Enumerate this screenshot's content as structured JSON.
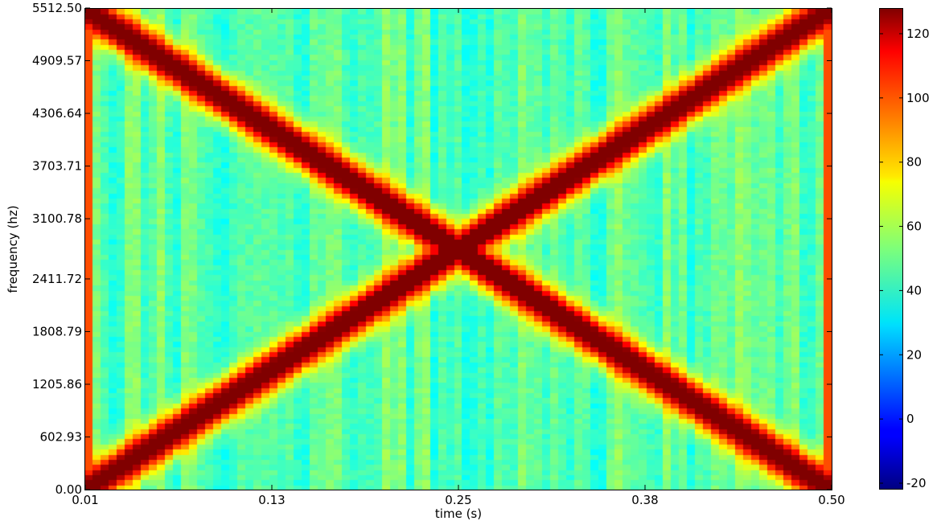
{
  "chart_data": {
    "type": "heatmap",
    "title": "",
    "xlabel": "time (s)",
    "ylabel": "frequency (hz)",
    "xlim": [
      0.01,
      0.5
    ],
    "ylim": [
      0,
      5512.5
    ],
    "x_ticks": [
      "0.01",
      "0.13",
      "0.25",
      "0.38",
      "0.50"
    ],
    "y_ticks": [
      "0.00",
      "602.93",
      "1205.86",
      "1808.79",
      "2411.72",
      "3100.78",
      "3703.71",
      "4306.64",
      "4909.57",
      "5512.50"
    ],
    "colormap": "jet",
    "colorbar": {
      "min": -22,
      "max": 128,
      "ticks": [
        "-20",
        "0",
        "20",
        "40",
        "60",
        "80",
        "100",
        "120"
      ]
    },
    "description_values": {
      "time_bins": 93,
      "frequency_bins": 94,
      "peak_value": 128,
      "background_range": [
        20,
        60
      ],
      "crossing_time": 0.25,
      "crossing_frequency": 2756
    },
    "series": [
      {
        "shape": "rising ridge",
        "points": [
          {
            "time": 0.01,
            "frequency": 0
          },
          {
            "time": 0.5,
            "frequency": 5512.5
          }
        ],
        "value": 128
      },
      {
        "shape": "falling ridge",
        "points": [
          {
            "time": 0.01,
            "frequency": 5512.5
          },
          {
            "time": 0.5,
            "frequency": 0
          }
        ],
        "value": 128
      }
    ]
  }
}
